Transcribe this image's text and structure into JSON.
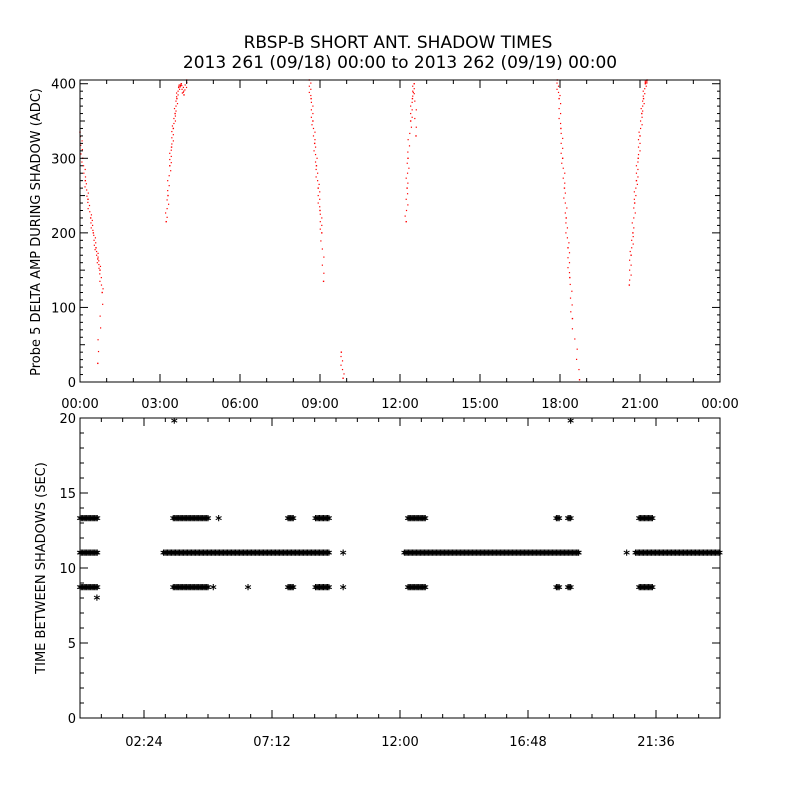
{
  "title_line1": "RBSP-B SHORT ANT. SHADOW TIMES",
  "title_line2": "2013 261 (09/18) 00:00 to 2013 262 (09/19) 00:00",
  "chart_data": [
    {
      "type": "scatter",
      "ylabel": "Probe 5 DELTA AMP DURING SHADOW (ADC)",
      "xlim": [
        "00:00",
        "24:00"
      ],
      "ylim": [
        0,
        405
      ],
      "x_ticks": [
        "00:00",
        "03:00",
        "06:00",
        "09:00",
        "12:00",
        "15:00",
        "18:00",
        "21:00",
        "00:00"
      ],
      "y_ticks": [
        0,
        100,
        200,
        300,
        400
      ],
      "marker_color": "#ff0000",
      "series": [
        {
          "x": [
            "00:00",
            "00:06",
            "00:12",
            "00:18",
            "00:24",
            "00:30",
            "00:36",
            "00:40",
            "00:45",
            "00:50",
            "00:40"
          ],
          "y": [
            335,
            300,
            270,
            245,
            220,
            200,
            180,
            165,
            150,
            120,
            25
          ]
        },
        {
          "x": [
            "03:14",
            "03:18",
            "03:22",
            "03:26",
            "03:30",
            "03:34",
            "03:38",
            "03:42",
            "03:48",
            "03:54",
            "04:00"
          ],
          "y": [
            215,
            250,
            290,
            315,
            340,
            360,
            380,
            395,
            400,
            385,
            405
          ]
        },
        {
          "x": [
            "08:36",
            "08:40",
            "08:44",
            "08:48",
            "08:52",
            "08:56",
            "09:00",
            "09:04",
            "09:08",
            "09:48",
            "09:52"
          ],
          "y": [
            405,
            380,
            350,
            320,
            290,
            260,
            230,
            200,
            135,
            40,
            5
          ]
        },
        {
          "x": [
            "12:14",
            "12:16",
            "12:18",
            "12:24",
            "12:28",
            "12:32",
            "12:36"
          ],
          "y": [
            215,
            260,
            300,
            350,
            380,
            400,
            330
          ]
        },
        {
          "x": [
            "17:54",
            "17:58",
            "18:02",
            "18:06",
            "18:10",
            "18:14",
            "18:18",
            "18:22",
            "18:28",
            "18:44"
          ],
          "y": [
            405,
            380,
            340,
            300,
            260,
            220,
            180,
            140,
            85,
            3
          ]
        },
        {
          "x": [
            "20:36",
            "20:40",
            "20:44",
            "20:48",
            "20:52",
            "20:56",
            "21:00",
            "21:04",
            "21:08",
            "21:12",
            "21:16"
          ],
          "y": [
            130,
            170,
            200,
            240,
            270,
            300,
            330,
            360,
            380,
            400,
            405
          ]
        }
      ]
    },
    {
      "type": "scatter",
      "ylabel": "TIME BETWEEN SHADOWS (SEC)",
      "xlim": [
        "00:00",
        "24:00"
      ],
      "ylim": [
        0,
        20
      ],
      "x_ticks": [
        "02:24",
        "07:12",
        "12:00",
        "16:48",
        "21:36"
      ],
      "y_ticks": [
        0,
        5,
        10,
        15,
        20
      ],
      "marker": "*",
      "marker_color": "#000000",
      "bands": [
        {
          "y": 13.2,
          "x_ranges": [
            [
              "00:00",
              "00:40"
            ],
            [
              "03:30",
              "04:48"
            ],
            [
              "07:48",
              "08:00"
            ],
            [
              "08:50",
              "09:22"
            ],
            [
              "12:18",
              "12:58"
            ],
            [
              "17:52",
              "18:00"
            ],
            [
              "18:18",
              "18:26"
            ],
            [
              "20:58",
              "21:28"
            ]
          ]
        },
        {
          "y": 10.9,
          "x_ranges": [
            [
              "00:00",
              "00:40"
            ],
            [
              "03:08",
              "09:22"
            ],
            [
              "12:10",
              "18:40"
            ],
            [
              "20:50",
              "24:00"
            ]
          ]
        },
        {
          "y": 8.6,
          "x_ranges": [
            [
              "00:00",
              "00:40"
            ],
            [
              "03:30",
              "04:48"
            ],
            [
              "07:48",
              "08:00"
            ],
            [
              "08:50",
              "09:22"
            ],
            [
              "12:18",
              "12:58"
            ],
            [
              "17:52",
              "18:00"
            ],
            [
              "18:18",
              "18:26"
            ],
            [
              "20:58",
              "21:28"
            ]
          ]
        }
      ],
      "points": [
        {
          "x": "03:32",
          "y": 19.7
        },
        {
          "x": "18:24",
          "y": 19.7
        },
        {
          "x": "00:38",
          "y": 7.9
        },
        {
          "x": "05:12",
          "y": 13.2
        },
        {
          "x": "06:18",
          "y": 8.6
        },
        {
          "x": "05:00",
          "y": 8.6
        },
        {
          "x": "09:52",
          "y": 10.9
        },
        {
          "x": "09:52",
          "y": 8.6
        },
        {
          "x": "18:42",
          "y": 10.9
        },
        {
          "x": "20:30",
          "y": 10.9
        }
      ]
    }
  ]
}
